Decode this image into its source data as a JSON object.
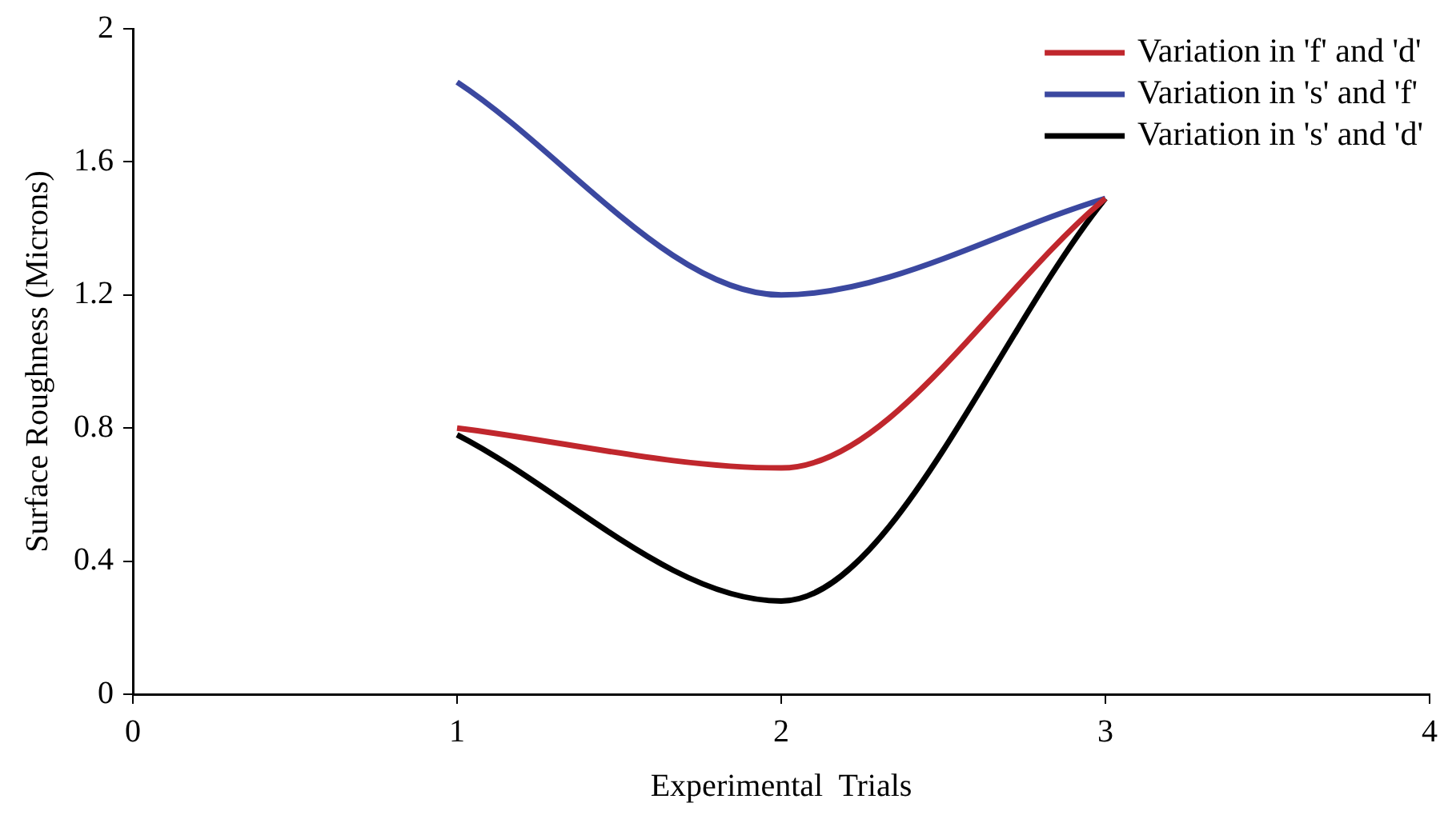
{
  "chart_data": {
    "type": "line",
    "xlabel": "Experimental  Trials",
    "ylabel": "Surface Roughness (Microns)",
    "x": [
      1,
      2,
      3
    ],
    "series": [
      {
        "name": "Variation in 'f' and 'd'",
        "color": "#c0272d",
        "values": [
          0.8,
          0.68,
          1.49
        ]
      },
      {
        "name": "Variation in 's' and 'f'",
        "color": "#3b48a0",
        "values": [
          1.84,
          1.2,
          1.49
        ]
      },
      {
        "name": "Variation in 's' and 'd'",
        "color": "#000000",
        "values": [
          0.78,
          0.28,
          1.49
        ]
      }
    ],
    "xlim": [
      0,
      4
    ],
    "xticks": [
      0,
      1,
      2,
      3,
      4
    ],
    "ylim": [
      0,
      2
    ],
    "yticks": [
      0,
      0.4,
      0.8,
      1.2,
      1.6,
      2
    ],
    "grid": false,
    "legend": "top right",
    "marker": "none",
    "line_style": "solid"
  }
}
